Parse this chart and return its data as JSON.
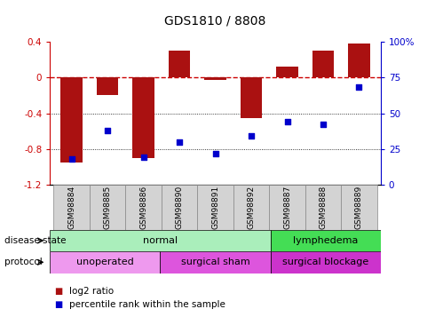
{
  "title": "GDS1810 / 8808",
  "samples": [
    "GSM98884",
    "GSM98885",
    "GSM98886",
    "GSM98890",
    "GSM98891",
    "GSM98892",
    "GSM98887",
    "GSM98888",
    "GSM98889"
  ],
  "log2_ratio": [
    -0.95,
    -0.2,
    -0.9,
    0.3,
    -0.03,
    -0.45,
    0.12,
    0.3,
    0.38
  ],
  "percentile_rank": [
    18,
    38,
    19,
    30,
    22,
    34,
    44,
    42,
    68
  ],
  "ylim_left": [
    -1.2,
    0.4
  ],
  "ylim_right": [
    0,
    100
  ],
  "bar_color": "#aa1111",
  "dot_color": "#0000cc",
  "zero_line_color": "#cc0000",
  "grid_color": "#000000",
  "disease_state_groups": [
    {
      "label": "normal",
      "start": 0,
      "end": 6,
      "color": "#aaeebb"
    },
    {
      "label": "lymphedema",
      "start": 6,
      "end": 9,
      "color": "#44dd55"
    }
  ],
  "protocol_groups": [
    {
      "label": "unoperated",
      "start": 0,
      "end": 3,
      "color": "#ee99ee"
    },
    {
      "label": "surgical sham",
      "start": 3,
      "end": 6,
      "color": "#dd55dd"
    },
    {
      "label": "surgical blockage",
      "start": 6,
      "end": 9,
      "color": "#cc33cc"
    }
  ],
  "legend_items": [
    {
      "label": "log2 ratio",
      "color": "#aa1111"
    },
    {
      "label": "percentile rank within the sample",
      "color": "#0000cc"
    }
  ]
}
